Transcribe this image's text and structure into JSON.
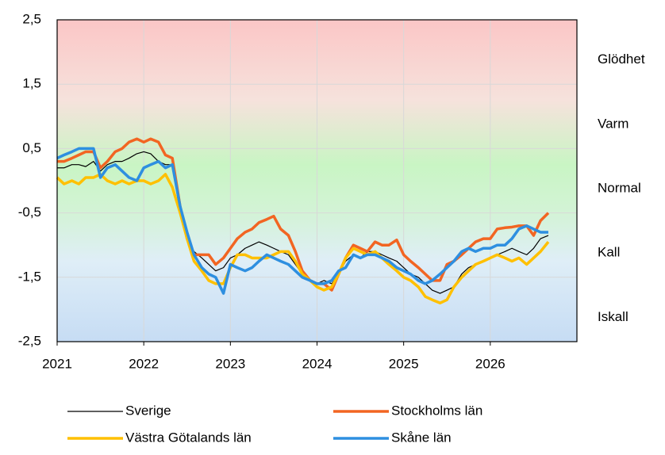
{
  "chart_data": {
    "type": "line",
    "x": [
      2021,
      2021.08,
      2021.17,
      2021.25,
      2021.33,
      2021.42,
      2021.5,
      2021.58,
      2021.67,
      2021.75,
      2021.83,
      2021.92,
      2022,
      2022.08,
      2022.17,
      2022.25,
      2022.33,
      2022.42,
      2022.5,
      2022.58,
      2022.67,
      2022.75,
      2022.83,
      2022.92,
      2023,
      2023.08,
      2023.17,
      2023.25,
      2023.33,
      2023.42,
      2023.5,
      2023.58,
      2023.67,
      2023.75,
      2023.83,
      2023.92,
      2024,
      2024.08,
      2024.17,
      2024.25,
      2024.33,
      2024.42,
      2024.5,
      2024.58,
      2024.67,
      2024.75,
      2024.83,
      2024.92,
      2025,
      2025.08,
      2025.17,
      2025.25,
      2025.33,
      2025.42,
      2025.5,
      2025.58,
      2025.67,
      2025.75,
      2025.83,
      2025.92,
      2026,
      2026.08,
      2026.17,
      2026.25,
      2026.33,
      2026.42,
      2026.5,
      2026.58,
      2026.67
    ],
    "series": [
      {
        "name": "Sverige",
        "color": "#000000",
        "values": [
          0.2,
          0.2,
          0.25,
          0.25,
          0.22,
          0.3,
          0.15,
          0.25,
          0.3,
          0.3,
          0.35,
          0.42,
          0.45,
          0.42,
          0.3,
          0.25,
          0.25,
          -0.5,
          -0.9,
          -1.1,
          -1.2,
          -1.3,
          -1.4,
          -1.35,
          -1.2,
          -1.15,
          -1.05,
          -1.0,
          -0.95,
          -1.0,
          -1.05,
          -1.1,
          -1.15,
          -1.3,
          -1.45,
          -1.55,
          -1.6,
          -1.55,
          -1.6,
          -1.45,
          -1.25,
          -1.15,
          -1.2,
          -1.1,
          -1.1,
          -1.15,
          -1.2,
          -1.25,
          -1.35,
          -1.45,
          -1.5,
          -1.6,
          -1.7,
          -1.75,
          -1.7,
          -1.65,
          -1.45,
          -1.35,
          -1.3,
          -1.25,
          -1.2,
          -1.15,
          -1.1,
          -1.05,
          -1.1,
          -1.15,
          -1.05,
          -0.9,
          -0.85
        ]
      },
      {
        "name": "Stockholms län",
        "color": "#f26522",
        "values": [
          0.3,
          0.3,
          0.35,
          0.4,
          0.45,
          0.45,
          0.2,
          0.3,
          0.45,
          0.5,
          0.6,
          0.65,
          0.6,
          0.65,
          0.6,
          0.4,
          0.35,
          -0.4,
          -0.9,
          -1.15,
          -1.15,
          -1.15,
          -1.3,
          -1.2,
          -1.05,
          -0.9,
          -0.8,
          -0.75,
          -0.65,
          -0.6,
          -0.55,
          -0.75,
          -0.85,
          -1.1,
          -1.4,
          -1.55,
          -1.6,
          -1.6,
          -1.7,
          -1.45,
          -1.2,
          -1.0,
          -1.05,
          -1.1,
          -0.95,
          -1.0,
          -1.0,
          -0.92,
          -1.15,
          -1.25,
          -1.35,
          -1.45,
          -1.55,
          -1.55,
          -1.3,
          -1.25,
          -1.15,
          -1.05,
          -0.95,
          -0.9,
          -0.9,
          -0.75,
          -0.73,
          -0.72,
          -0.7,
          -0.7,
          -0.85,
          -0.62,
          -0.5
        ]
      },
      {
        "name": "Västra Götalands län",
        "color": "#ffc000",
        "values": [
          0.05,
          -0.05,
          0.0,
          -0.05,
          0.05,
          0.05,
          0.1,
          0.0,
          -0.05,
          0.0,
          -0.05,
          0.0,
          0.0,
          -0.05,
          0.0,
          0.1,
          -0.1,
          -0.5,
          -0.9,
          -1.25,
          -1.4,
          -1.55,
          -1.6,
          -1.6,
          -1.35,
          -1.15,
          -1.15,
          -1.2,
          -1.2,
          -1.2,
          -1.15,
          -1.1,
          -1.1,
          -1.25,
          -1.45,
          -1.55,
          -1.65,
          -1.7,
          -1.65,
          -1.45,
          -1.2,
          -1.05,
          -1.1,
          -1.15,
          -1.1,
          -1.2,
          -1.3,
          -1.4,
          -1.5,
          -1.55,
          -1.65,
          -1.8,
          -1.85,
          -1.9,
          -1.85,
          -1.65,
          -1.5,
          -1.4,
          -1.3,
          -1.25,
          -1.2,
          -1.15,
          -1.2,
          -1.25,
          -1.2,
          -1.3,
          -1.2,
          -1.1,
          -0.95
        ]
      },
      {
        "name": "Skåne län",
        "color": "#2e8fe0",
        "values": [
          0.35,
          0.4,
          0.45,
          0.5,
          0.5,
          0.5,
          0.05,
          0.2,
          0.25,
          0.15,
          0.05,
          0.0,
          0.2,
          0.25,
          0.3,
          0.2,
          0.25,
          -0.4,
          -0.8,
          -1.15,
          -1.35,
          -1.45,
          -1.5,
          -1.75,
          -1.3,
          -1.35,
          -1.4,
          -1.35,
          -1.25,
          -1.15,
          -1.2,
          -1.25,
          -1.3,
          -1.4,
          -1.5,
          -1.55,
          -1.6,
          -1.6,
          -1.55,
          -1.4,
          -1.35,
          -1.15,
          -1.2,
          -1.15,
          -1.15,
          -1.2,
          -1.25,
          -1.35,
          -1.4,
          -1.45,
          -1.55,
          -1.6,
          -1.55,
          -1.45,
          -1.35,
          -1.25,
          -1.1,
          -1.05,
          -1.1,
          -1.05,
          -1.05,
          -1.0,
          -1.0,
          -0.9,
          -0.75,
          -0.7,
          -0.75,
          -0.8,
          -0.8
        ]
      }
    ],
    "xlim": [
      2021,
      2027
    ],
    "xticks": [
      2021,
      2022,
      2023,
      2024,
      2025,
      2026
    ],
    "ylim": [
      -2.5,
      2.5
    ],
    "yticks": [
      {
        "value": 2.5,
        "label": "2,5"
      },
      {
        "value": 1.5,
        "label": "1,5"
      },
      {
        "value": 0.5,
        "label": "0,5"
      },
      {
        "value": -0.5,
        "label": "-0,5"
      },
      {
        "value": -1.5,
        "label": "-1,5"
      },
      {
        "value": -2.5,
        "label": "-2,5"
      }
    ],
    "zones": [
      "Glödhet",
      "Varm",
      "Normal",
      "Kall",
      "Iskall"
    ],
    "grid": true,
    "legend": "bottom"
  }
}
